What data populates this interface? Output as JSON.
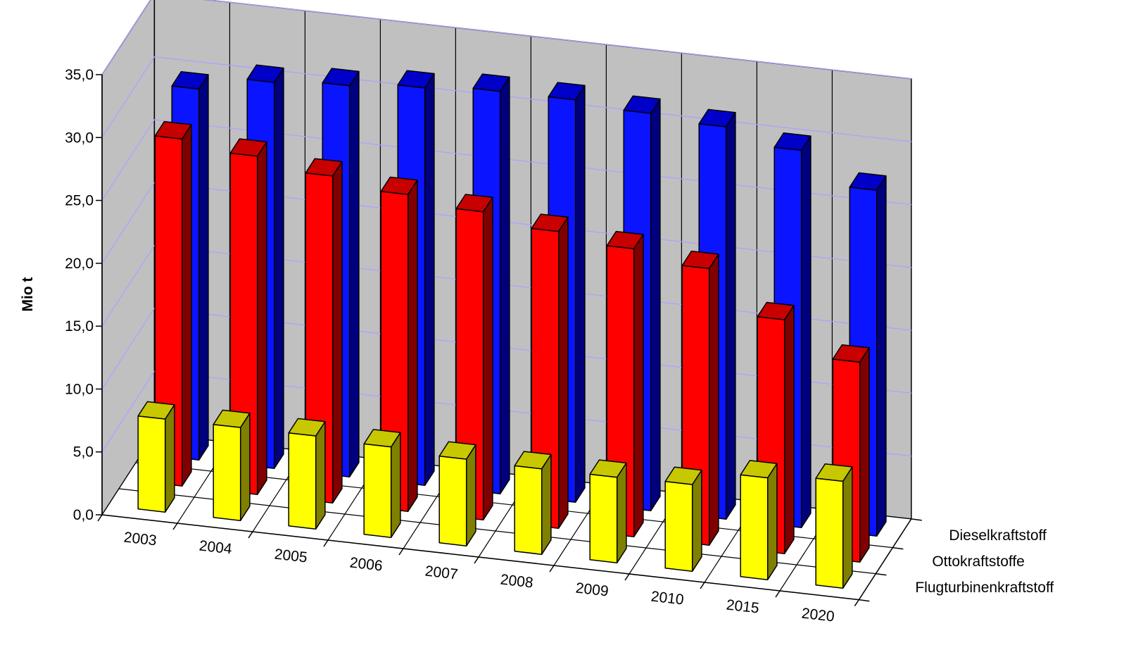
{
  "chart_data": {
    "type": "bar",
    "style": "3d-grouped-depth",
    "ylabel": "Mio t",
    "ylim": [
      0,
      35
    ],
    "yticks": [
      "0,0",
      "5,0",
      "10,0",
      "15,0",
      "20,0",
      "25,0",
      "30,0",
      "35,0"
    ],
    "categories": [
      "2003",
      "2004",
      "2005",
      "2006",
      "2007",
      "2008",
      "2009",
      "2010",
      "2015",
      "2020"
    ],
    "series": [
      {
        "name": "Dieselkraftstoff",
        "values": [
          29.5,
          30.7,
          31.1,
          31.6,
          32.0,
          32.0,
          31.6,
          31.2,
          30.0,
          27.5
        ],
        "color": "#0a14ff",
        "side_color": "#00007f",
        "top_color": "#0000c8"
      },
      {
        "name": "Ottokraftstoffe",
        "values": [
          27.6,
          26.9,
          26.0,
          25.2,
          24.5,
          23.6,
          22.9,
          22.0,
          18.6,
          15.9
        ],
        "color": "#ff0000",
        "side_color": "#800000",
        "top_color": "#c80000"
      },
      {
        "name": "Flugturbinenkraftstoff",
        "values": [
          7.4,
          7.4,
          7.4,
          7.2,
          6.9,
          6.8,
          6.8,
          6.9,
          8.1,
          8.5
        ],
        "color": "#ffff00",
        "side_color": "#808000",
        "top_color": "#c8c800"
      }
    ],
    "grid": true,
    "legend": "depth-axis-labels-right"
  }
}
